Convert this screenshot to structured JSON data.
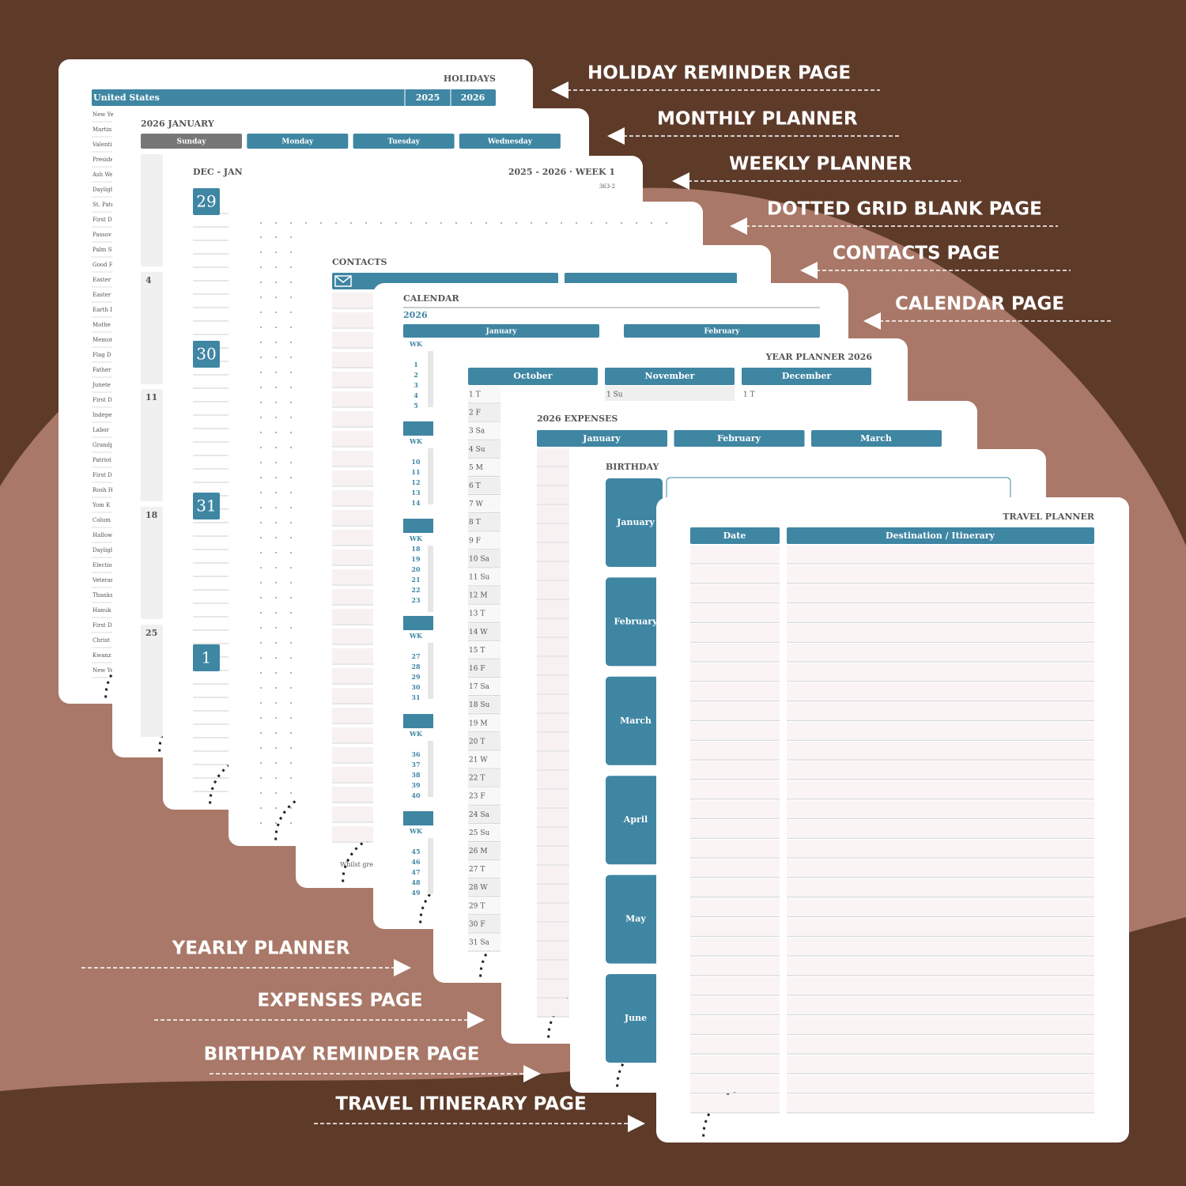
{
  "labels": {
    "right": [
      "HOLIDAY REMINDER PAGE",
      "MONTHLY PLANNER",
      "WEEKLY PLANNER",
      "DOTTED GRID BLANK PAGE",
      "CONTACTS PAGE",
      "CALENDAR PAGE"
    ],
    "left": [
      "YEARLY PLANNER",
      "EXPENSES PAGE",
      "BIRTHDAY REMINDER PAGE",
      "TRAVEL ITINERARY PAGE"
    ]
  },
  "pages": {
    "holidays": {
      "title": "HOLIDAYS",
      "country": "United States",
      "years": [
        "2025",
        "2026"
      ],
      "list": [
        "New Ye",
        "Martin",
        "Valenti",
        "Preside",
        "Ash We",
        "Dayligh",
        "St. Patr",
        "First D",
        "Passov",
        "Palm Su",
        "Good F",
        "Easter S",
        "Easter",
        "Earth D",
        "Mothe",
        "Memor",
        "Flag D",
        "Father",
        "Junete",
        "First D",
        "Indepe",
        "Labor",
        "Grandp",
        "Patriot",
        "First D",
        "Rosh H",
        "Yom K",
        "Colum",
        "Hallow",
        "Dayligh",
        "Electio",
        "Veterar",
        "Thanks",
        "Hanuk",
        "First D",
        "Christ",
        "Kwanz",
        "New Ye"
      ]
    },
    "monthly": {
      "title": "2026 JANUARY",
      "days": [
        "Sunday",
        "Monday",
        "Tuesday",
        "Wednesday"
      ],
      "dates": [
        4,
        11,
        18,
        25
      ]
    },
    "weekly": {
      "title": "DEC - JAN",
      "week": "2025 - 2026 · WEEK 1",
      "daycount": "363-2",
      "dates": [
        29,
        30,
        31,
        1
      ]
    },
    "contacts": {
      "title": "CONTACTS",
      "footer": "Whilst grea"
    },
    "calendar": {
      "title": "CALENDAR",
      "year": "2026",
      "months": [
        "January",
        "February"
      ],
      "wk": "WK",
      "weeks": [
        [
          1,
          2,
          3,
          4,
          5
        ],
        [
          10,
          11,
          12,
          13,
          14
        ],
        [
          18,
          19,
          20,
          21,
          22,
          23
        ],
        [
          27,
          28,
          29,
          30,
          31
        ],
        [
          36,
          37,
          38,
          39,
          40
        ],
        [
          45,
          46,
          47,
          48,
          49
        ]
      ]
    },
    "year_planner": {
      "title": "YEAR PLANNER 2026",
      "months": [
        "October",
        "November",
        "December"
      ],
      "october": [
        "1 T",
        "2 F",
        "3 Sa",
        "4 Su",
        "5 M",
        "6 T",
        "7 W",
        "8 T",
        "9 F",
        "10 Sa",
        "11 Su",
        "12 M",
        "13 T",
        "14 W",
        "15 T",
        "16 F",
        "17 Sa",
        "18 Su",
        "19 M",
        "20 T",
        "21 W",
        "22 T",
        "23 F",
        "24 Sa",
        "25 Su",
        "26 M",
        "27 T",
        "28 W",
        "29 T",
        "30 F",
        "31 Sa"
      ],
      "november_first": "1 Su",
      "december_first": "1 T"
    },
    "expenses": {
      "title": "2026 EXPENSES",
      "months": [
        "January",
        "February",
        "March"
      ]
    },
    "birthday": {
      "title": "BIRTHDAY",
      "months": [
        "January",
        "February",
        "March",
        "April",
        "May",
        "June"
      ]
    },
    "travel": {
      "title": "TRAVEL PLANNER",
      "columns": [
        "Date",
        "Destination / Itinerary"
      ]
    }
  }
}
